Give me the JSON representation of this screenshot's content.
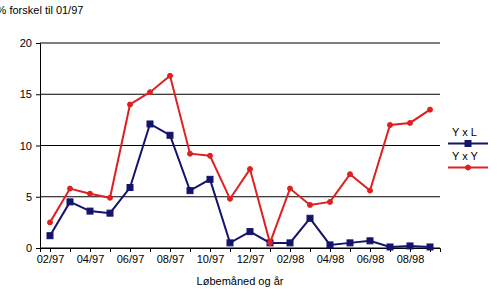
{
  "chart_data": {
    "type": "line",
    "y_label": "% forskel til 01/97",
    "x_label": "Løbemåned og år",
    "categories": [
      "02/97",
      null,
      "04/97",
      null,
      "06/97",
      null,
      "08/97",
      null,
      "10/97",
      null,
      "12/97",
      null,
      "02/98",
      null,
      "04/98",
      null,
      "06/98",
      null,
      "08/98",
      null
    ],
    "series": [
      {
        "name": "Y x L",
        "color": "#14146e",
        "marker": "square",
        "values": [
          1.2,
          4.5,
          3.6,
          3.4,
          5.9,
          12.1,
          11.0,
          5.6,
          6.7,
          0.5,
          1.6,
          0.5,
          0.5,
          2.9,
          0.3,
          0.5,
          0.7,
          0.1,
          0.2,
          0.1
        ]
      },
      {
        "name": "Y x Y",
        "color": "#e02020",
        "marker": "circle",
        "values": [
          2.5,
          5.8,
          5.3,
          4.9,
          14.0,
          15.2,
          16.8,
          9.2,
          9.0,
          4.8,
          7.7,
          0.5,
          5.8,
          4.2,
          4.5,
          7.2,
          5.6,
          12.0,
          12.2,
          13.5
        ]
      }
    ],
    "ylim": [
      0,
      20
    ],
    "yticks": [
      0,
      5,
      10,
      15,
      20
    ],
    "grid": true,
    "legend": "right"
  }
}
